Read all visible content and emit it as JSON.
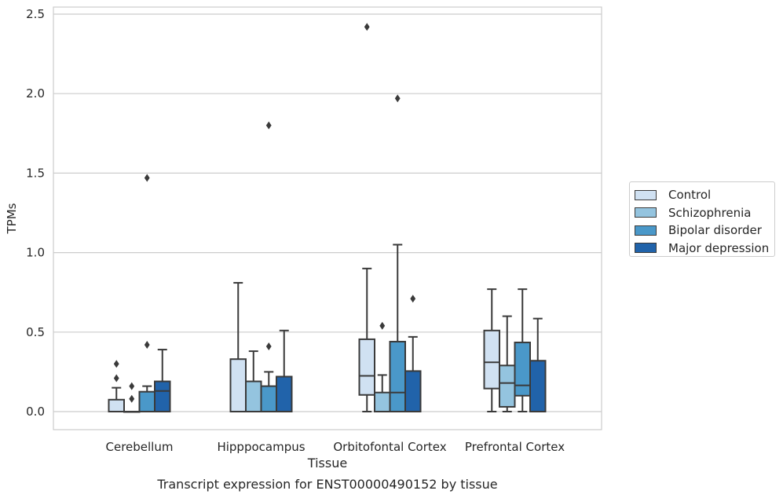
{
  "chart_data": {
    "type": "box",
    "title": "Transcript expression for ENST00000490152 by tissue",
    "xlabel": "Tissue",
    "ylabel": "TPMs",
    "ylim": [
      -0.12,
      2.55
    ],
    "yticks": [
      0.0,
      0.5,
      1.0,
      1.5,
      2.0,
      2.5
    ],
    "ytick_labels": [
      "0.0",
      "0.5",
      "1.0",
      "1.5",
      "2.0",
      "2.5"
    ],
    "grid": true,
    "legend_position": "right",
    "categories": [
      "Cerebellum",
      "Hipppocampus",
      "Orbitofontal Cortex",
      "Prefrontal Cortex"
    ],
    "series": [
      {
        "name": "Control",
        "color": "#d0e1f2",
        "boxes": [
          {
            "q1": 0.0,
            "median": 0.0,
            "q3": 0.075,
            "whisker_low": 0.0,
            "whisker_high": 0.15,
            "outliers": [
              0.21,
              0.3
            ]
          },
          {
            "q1": 0.0,
            "median": 0.0,
            "q3": 0.33,
            "whisker_low": 0.0,
            "whisker_high": 0.81,
            "outliers": []
          },
          {
            "q1": 0.105,
            "median": 0.225,
            "q3": 0.455,
            "whisker_low": 0.0,
            "whisker_high": 0.9,
            "outliers": [
              2.42
            ]
          },
          {
            "q1": 0.145,
            "median": 0.31,
            "q3": 0.51,
            "whisker_low": 0.0,
            "whisker_high": 0.77,
            "outliers": []
          }
        ]
      },
      {
        "name": "Schizophrenia",
        "color": "#94c4df",
        "boxes": [
          {
            "q1": 0.0,
            "median": 0.0,
            "q3": 0.0,
            "whisker_low": 0.0,
            "whisker_high": 0.0,
            "outliers": [
              0.08,
              0.16
            ]
          },
          {
            "q1": 0.0,
            "median": 0.0,
            "q3": 0.19,
            "whisker_low": 0.0,
            "whisker_high": 0.38,
            "outliers": []
          },
          {
            "q1": 0.0,
            "median": 0.0,
            "q3": 0.12,
            "whisker_low": 0.0,
            "whisker_high": 0.23,
            "outliers": [
              0.54
            ]
          },
          {
            "q1": 0.03,
            "median": 0.18,
            "q3": 0.29,
            "whisker_low": 0.0,
            "whisker_high": 0.6,
            "outliers": []
          }
        ]
      },
      {
        "name": "Bipolar disorder",
        "color": "#4a98c9",
        "boxes": [
          {
            "q1": 0.0,
            "median": 0.0,
            "q3": 0.125,
            "whisker_low": 0.0,
            "whisker_high": 0.16,
            "outliers": [
              0.42,
              1.47
            ]
          },
          {
            "q1": 0.0,
            "median": 0.0,
            "q3": 0.16,
            "whisker_low": 0.0,
            "whisker_high": 0.25,
            "outliers": [
              0.41,
              1.8
            ]
          },
          {
            "q1": 0.0,
            "median": 0.12,
            "q3": 0.44,
            "whisker_low": 0.0,
            "whisker_high": 1.05,
            "outliers": [
              1.97
            ]
          },
          {
            "q1": 0.1,
            "median": 0.165,
            "q3": 0.435,
            "whisker_low": 0.0,
            "whisker_high": 0.77,
            "outliers": []
          }
        ]
      },
      {
        "name": "Major depression",
        "color": "#2163aa",
        "boxes": [
          {
            "q1": 0.0,
            "median": 0.13,
            "q3": 0.19,
            "whisker_low": 0.0,
            "whisker_high": 0.39,
            "outliers": []
          },
          {
            "q1": 0.0,
            "median": 0.0,
            "q3": 0.22,
            "whisker_low": 0.0,
            "whisker_high": 0.51,
            "outliers": []
          },
          {
            "q1": 0.0,
            "median": 0.0,
            "q3": 0.255,
            "whisker_low": 0.0,
            "whisker_high": 0.47,
            "outliers": [
              0.71
            ]
          },
          {
            "q1": 0.0,
            "median": 0.0,
            "q3": 0.32,
            "whisker_low": 0.0,
            "whisker_high": 0.585,
            "outliers": []
          }
        ]
      }
    ]
  }
}
